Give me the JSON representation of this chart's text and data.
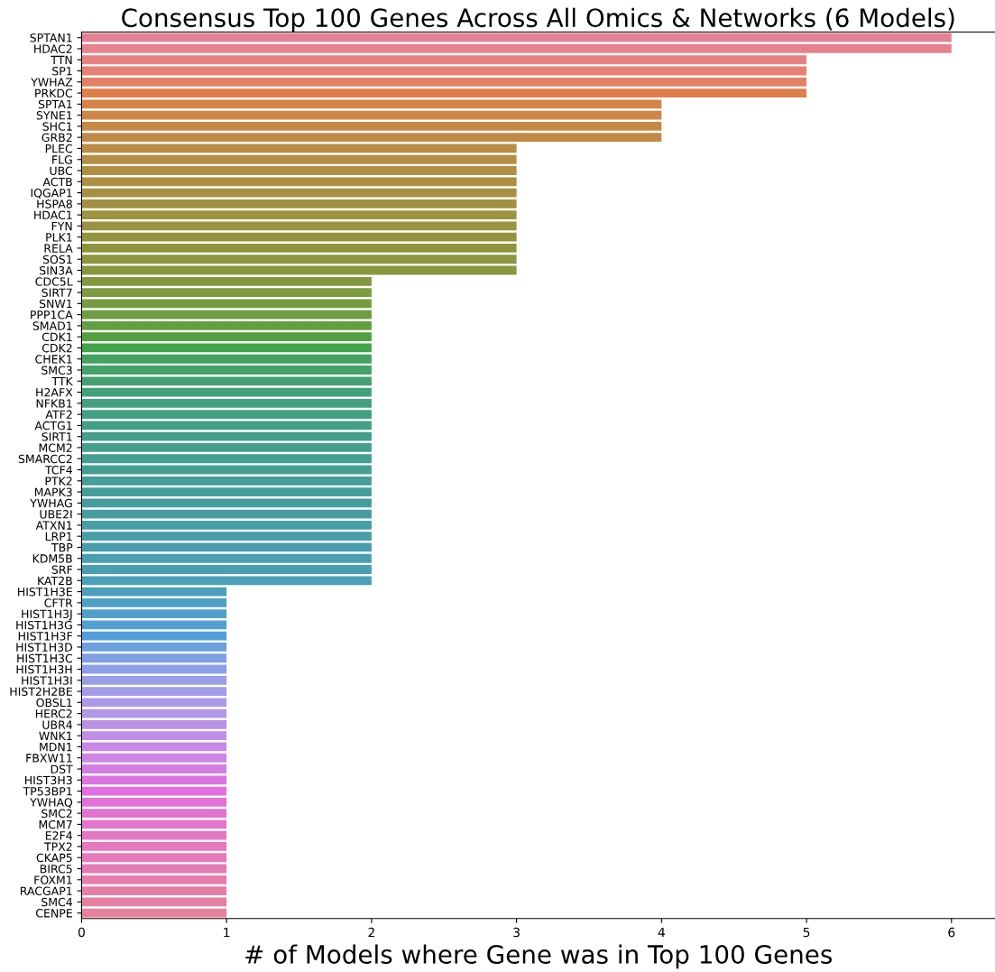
{
  "chart_data": {
    "type": "bar",
    "orientation": "horizontal",
    "title": "Consensus Top 100 Genes Across All Omics & Networks (6 Models)",
    "xlabel": "# of Models where Gene was in Top 100 Genes",
    "categories": [
      "SPTAN1",
      "HDAC2",
      "TTN",
      "SP1",
      "YWHAZ",
      "PRKDC",
      "SPTA1",
      "SYNE1",
      "SHC1",
      "GRB2",
      "PLEC",
      "FLG",
      "UBC",
      "ACTB",
      "IQGAP1",
      "HSPA8",
      "HDAC1",
      "FYN",
      "PLK1",
      "RELA",
      "SOS1",
      "SIN3A",
      "CDC5L",
      "SIRT7",
      "SNW1",
      "PPP1CA",
      "SMAD1",
      "CDK1",
      "CDK2",
      "CHEK1",
      "SMC3",
      "TTK",
      "H2AFX",
      "NFKB1",
      "ATF2",
      "ACTG1",
      "SIRT1",
      "MCM2",
      "SMARCC2",
      "TCF4",
      "PTK2",
      "MAPK3",
      "YWHAG",
      "UBE2I",
      "ATXN1",
      "LRP1",
      "TBP",
      "KDM5B",
      "SRF",
      "KAT2B",
      "HIST1H3E",
      "CFTR",
      "HIST1H3J",
      "HIST1H3G",
      "HIST1H3F",
      "HIST1H3D",
      "HIST1H3C",
      "HIST1H3H",
      "HIST1H3I",
      "HIST2H2BE",
      "OBSL1",
      "HERC2",
      "UBR4",
      "WNK1",
      "MDN1",
      "FBXW11",
      "DST",
      "HIST3H3",
      "TP53BP1",
      "YWHAQ",
      "SMC2",
      "MCM7",
      "E2F4",
      "TPX2",
      "CKAP5",
      "BIRC5",
      "FOXM1",
      "RACGAP1",
      "SMC4",
      "CENPE"
    ],
    "values": [
      6,
      6,
      5,
      5,
      5,
      5,
      4,
      4,
      4,
      4,
      3,
      3,
      3,
      3,
      3,
      3,
      3,
      3,
      3,
      3,
      3,
      3,
      2,
      2,
      2,
      2,
      2,
      2,
      2,
      2,
      2,
      2,
      2,
      2,
      2,
      2,
      2,
      2,
      2,
      2,
      2,
      2,
      2,
      2,
      2,
      2,
      2,
      2,
      2,
      2,
      1,
      1,
      1,
      1,
      1,
      1,
      1,
      1,
      1,
      1,
      1,
      1,
      1,
      1,
      1,
      1,
      1,
      1,
      1,
      1,
      1,
      1,
      1,
      1,
      1,
      1,
      1,
      1,
      1,
      1
    ],
    "colors": [
      "#e68193",
      "#e6828c",
      "#e68382",
      "#e58275",
      "#e28164",
      "#de7e4b",
      "#d58349",
      "#cd8648",
      "#c68847",
      "#c08a46",
      "#bb8c45",
      "#b58d45",
      "#b08e44",
      "#ac8f43",
      "#a79042",
      "#a39142",
      "#9e9241",
      "#999240",
      "#959340",
      "#90943f",
      "#8c9540",
      "#879740",
      "#829840",
      "#7c9a40",
      "#759c40",
      "#6d9d41",
      "#629f41",
      "#52a141",
      "#41a34b",
      "#42a25d",
      "#42a269",
      "#43a171",
      "#43a178",
      "#43a07e",
      "#43a083",
      "#449f87",
      "#449f8b",
      "#449f8e",
      "#449e91",
      "#449e94",
      "#459e97",
      "#459e9a",
      "#459d9d",
      "#469da1",
      "#469ea4",
      "#479ea8",
      "#489eab",
      "#499eaf",
      "#4a9eb4",
      "#4b9fb8",
      "#4c9fbd",
      "#4d9fc3",
      "#4f9fca",
      "#519fd3",
      "#539fdd",
      "#6da0e1",
      "#7fa0e4",
      "#8da0e6",
      "#999fe7",
      "#a39de8",
      "#ab99e7",
      "#b296e7",
      "#b992e6",
      "#c08ee6",
      "#c789e5",
      "#ce84e4",
      "#d47de3",
      "#db75e2",
      "#e16fdf",
      "#e271d8",
      "#e274d1",
      "#e376ca",
      "#e377c5",
      "#e479bf",
      "#e47ab9",
      "#e47cb4",
      "#e57dae",
      "#e57ea8",
      "#e57fa2",
      "#e6809c"
    ],
    "xlim": [
      0,
      6.3
    ],
    "xticks": [
      0,
      1,
      2,
      3,
      4,
      5,
      6
    ],
    "grid": false,
    "legend": false
  }
}
